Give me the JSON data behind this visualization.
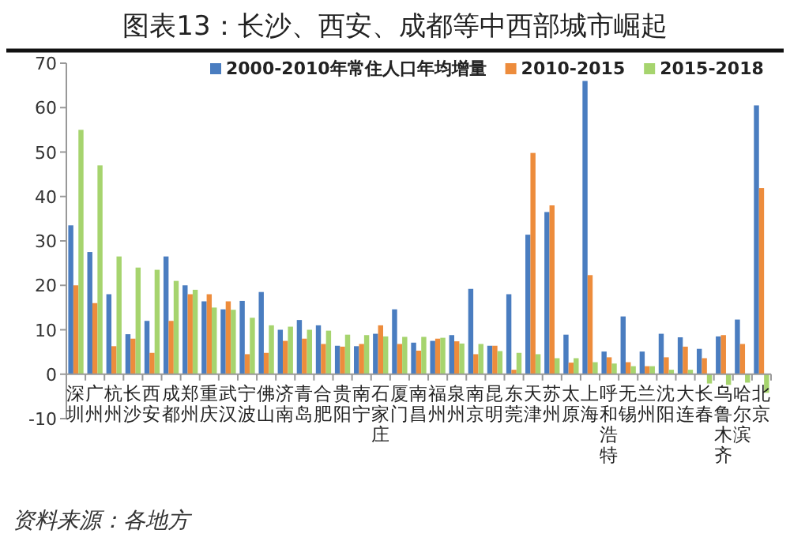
{
  "chart_data": {
    "type": "bar",
    "title": "图表13：长沙、西安、成都等中西部城市崛起",
    "categories": [
      "深圳",
      "广州",
      "杭州",
      "长沙",
      "西安",
      "成都",
      "郑州",
      "重庆",
      "武汉",
      "宁波",
      "佛山",
      "济南",
      "青岛",
      "合肥",
      "贵阳",
      "南宁",
      "石家庄",
      "厦门",
      "南昌",
      "福州",
      "泉州",
      "南京",
      "昆明",
      "东莞",
      "天津",
      "苏州",
      "太原",
      "上海",
      "呼和浩特",
      "无锡",
      "兰州",
      "沈阳",
      "大连",
      "长春",
      "乌鲁木齐",
      "哈尔滨",
      "北京"
    ],
    "series": [
      {
        "name": "2000-2010年常住人口年均增量",
        "color": "#4a7dc0",
        "values": [
          33.5,
          27.5,
          18,
          9,
          12,
          26.5,
          20,
          16.4,
          14.6,
          16.5,
          18.5,
          10,
          12.2,
          11,
          6.4,
          6.3,
          9.1,
          14.6,
          7.1,
          7.5,
          8.8,
          19.2,
          6.4,
          18,
          31.4,
          36.5,
          8.9,
          66,
          5.1,
          13,
          5.1,
          9.1,
          8.3,
          5.7,
          8.5,
          12.3,
          60.5
        ]
      },
      {
        "name": "2010-2015",
        "color": "#ed8c3c",
        "values": [
          20,
          16,
          6.3,
          8,
          4.8,
          12,
          18,
          18,
          16.4,
          4.5,
          4.8,
          7.5,
          8,
          6.8,
          6.2,
          6.8,
          11,
          6.8,
          5.3,
          8,
          7.4,
          4.5,
          6.4,
          1,
          49.8,
          38,
          2.6,
          22.3,
          3.8,
          2.7,
          1.8,
          3.8,
          6.2,
          3.6,
          8.8,
          6.8,
          41.9
        ]
      },
      {
        "name": "2015-2018",
        "color": "#a6d46e",
        "values": [
          55,
          47,
          26.5,
          24,
          23.5,
          21,
          19,
          15,
          14.5,
          12.7,
          11,
          10.7,
          10,
          9.8,
          8.9,
          8.8,
          8.5,
          8.4,
          8.4,
          8.2,
          6.9,
          6.8,
          5.2,
          4.8,
          4.5,
          3.6,
          3.6,
          2.7,
          2.4,
          1.8,
          1.8,
          1,
          1,
          -2.1,
          -2.4,
          -1.9,
          -4.2
        ]
      }
    ],
    "ylim": [
      -10,
      70
    ],
    "yticks": [
      -10,
      0,
      10,
      20,
      30,
      40,
      50,
      60,
      70
    ],
    "legend": "top",
    "grid": false,
    "annotations": [
      "资料来源：各地方"
    ]
  }
}
